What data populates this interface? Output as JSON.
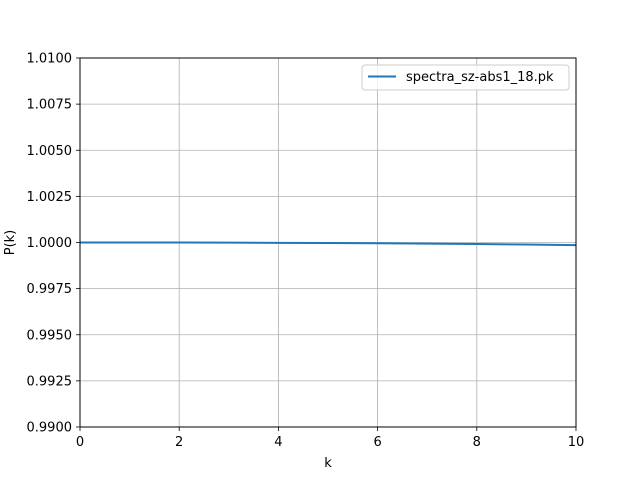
{
  "chart_data": {
    "type": "line",
    "title": "",
    "xlabel": "k",
    "ylabel": "P(k)",
    "xlim": [
      0,
      10
    ],
    "ylim": [
      0.99,
      1.01
    ],
    "xticks": [
      0,
      2,
      4,
      6,
      8,
      10
    ],
    "xtick_labels": [
      "0",
      "2",
      "4",
      "6",
      "8",
      "10"
    ],
    "yticks": [
      0.99,
      0.9925,
      0.995,
      0.9975,
      1.0,
      1.0025,
      1.005,
      1.0075,
      1.01
    ],
    "ytick_labels": [
      "0.9900",
      "0.9925",
      "0.9950",
      "0.9975",
      "1.0000",
      "1.0025",
      "1.0050",
      "1.0075",
      "1.0100"
    ],
    "grid": true,
    "legend_position": "top-right",
    "series": [
      {
        "name": "spectra_sz-abs1_18.pk",
        "color": "#1f77b4",
        "x": [
          0,
          1,
          2,
          3,
          4,
          5,
          6,
          7,
          8,
          9,
          10
        ],
        "y": [
          1.0,
          1.0,
          1.0,
          0.99999,
          0.99998,
          0.99997,
          0.99996,
          0.99994,
          0.99992,
          0.99989,
          0.99986
        ]
      }
    ]
  }
}
